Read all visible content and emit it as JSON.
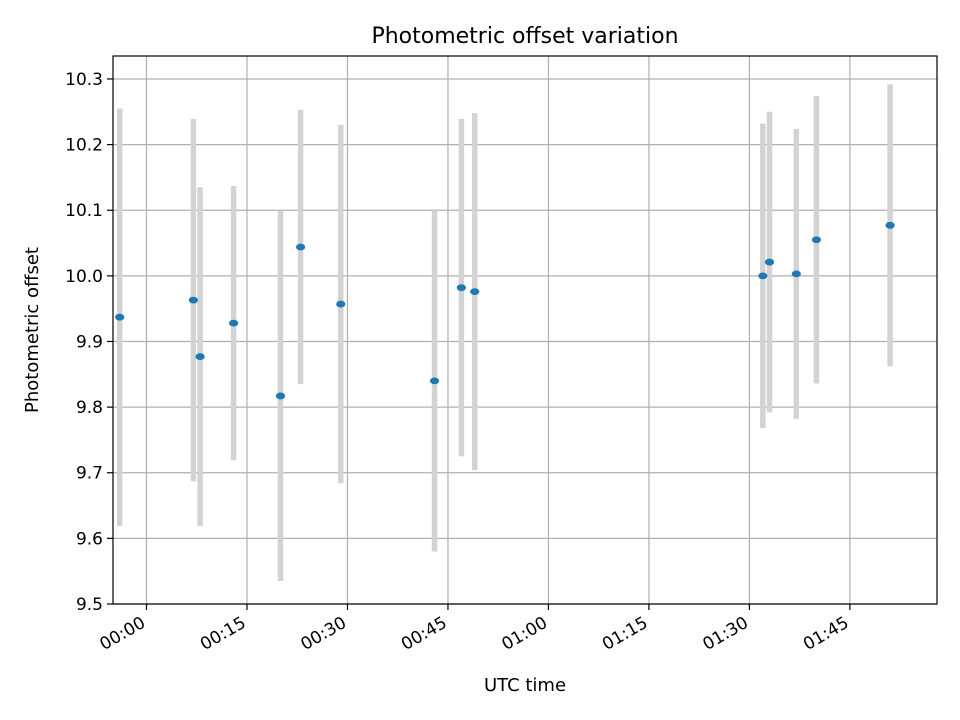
{
  "chart_data": {
    "type": "scatter",
    "title": "Photometric offset variation",
    "xlabel": "UTC time",
    "ylabel": "Photometric offset",
    "x_ticks": [
      "00:00",
      "00:15",
      "00:30",
      "00:45",
      "01:00",
      "01:15",
      "01:30",
      "01:45"
    ],
    "y_ticks": [
      "9.5",
      "9.6",
      "9.7",
      "9.8",
      "9.9",
      "10.0",
      "10.1",
      "10.2",
      "10.3"
    ],
    "xlim": [
      "23:55",
      "01:58"
    ],
    "ylim": [
      9.5,
      10.335
    ],
    "grid": true,
    "series": [
      {
        "x": [
          "23:56",
          "00:07",
          "00:08",
          "00:13",
          "00:20",
          "00:23",
          "00:29",
          "00:43",
          "00:47",
          "00:49",
          "01:32",
          "01:33",
          "01:37",
          "01:40",
          "01:51"
        ],
        "y": [
          9.937,
          9.963,
          9.877,
          9.928,
          9.817,
          10.044,
          9.957,
          9.84,
          9.982,
          9.976,
          10.0,
          10.021,
          10.003,
          10.055,
          10.077
        ],
        "error": [
          0.318,
          0.276,
          0.258,
          0.209,
          0.282,
          0.209,
          0.273,
          0.26,
          0.257,
          0.272,
          0.232,
          0.229,
          0.221,
          0.219,
          0.215
        ]
      }
    ],
    "colors": {
      "point": "#1f77b4",
      "errorbar": "#d3d3d3",
      "grid": "#b0b0b0",
      "axes": "#000000"
    }
  }
}
